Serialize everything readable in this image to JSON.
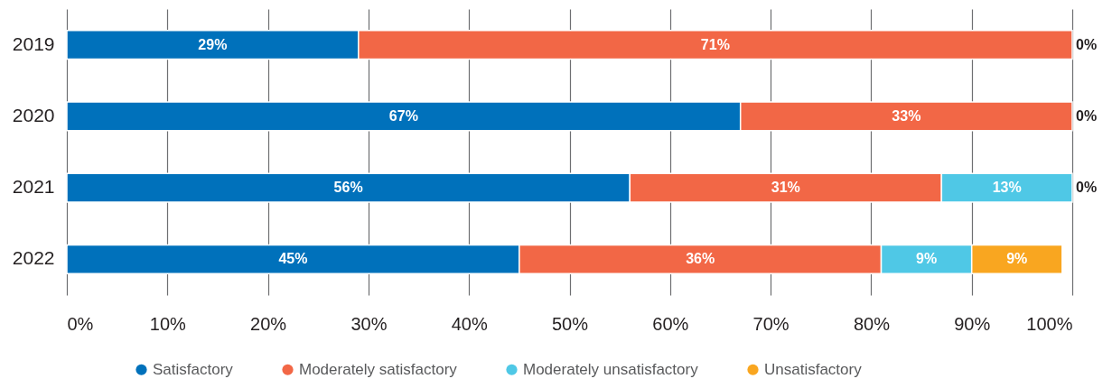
{
  "chart_data": {
    "type": "bar",
    "orientation": "horizontal",
    "stacked": true,
    "categories": [
      "2019",
      "2020",
      "2021",
      "2022"
    ],
    "series": [
      {
        "name": "Satisfactory",
        "color": "#0071bb",
        "values": [
          29,
          67,
          56,
          45
        ],
        "value_labels": [
          "29%",
          "67%",
          "56%",
          "45%"
        ]
      },
      {
        "name": "Moderately satisfactory",
        "color": "#f26746",
        "values": [
          71,
          33,
          31,
          36
        ],
        "value_labels": [
          "71%",
          "33%",
          "31%",
          "36%"
        ]
      },
      {
        "name": "Moderately unsatisfactory",
        "color": "#4fc8e6",
        "values": [
          0,
          0,
          13,
          9
        ],
        "value_labels": [
          null,
          null,
          "13%",
          "9%"
        ]
      },
      {
        "name": "Unsatisfactory",
        "color": "#f9a620",
        "values": [
          0,
          0,
          0,
          9
        ],
        "value_labels": [
          "0%",
          "0%",
          "0%",
          "9%"
        ]
      }
    ],
    "xlim": [
      0,
      100
    ],
    "xticks": [
      {
        "value": 0,
        "label": "0%"
      },
      {
        "value": 10,
        "label": "10%"
      },
      {
        "value": 20,
        "label": "20%"
      },
      {
        "value": 30,
        "label": "30%"
      },
      {
        "value": 40,
        "label": "40%"
      },
      {
        "value": 50,
        "label": "50%"
      },
      {
        "value": 60,
        "label": "60%"
      },
      {
        "value": 70,
        "label": "70%"
      },
      {
        "value": 80,
        "label": "80%"
      },
      {
        "value": 90,
        "label": "90%"
      },
      {
        "value": 100,
        "label": "100%"
      }
    ],
    "grid": "x",
    "legend": "bottom"
  }
}
